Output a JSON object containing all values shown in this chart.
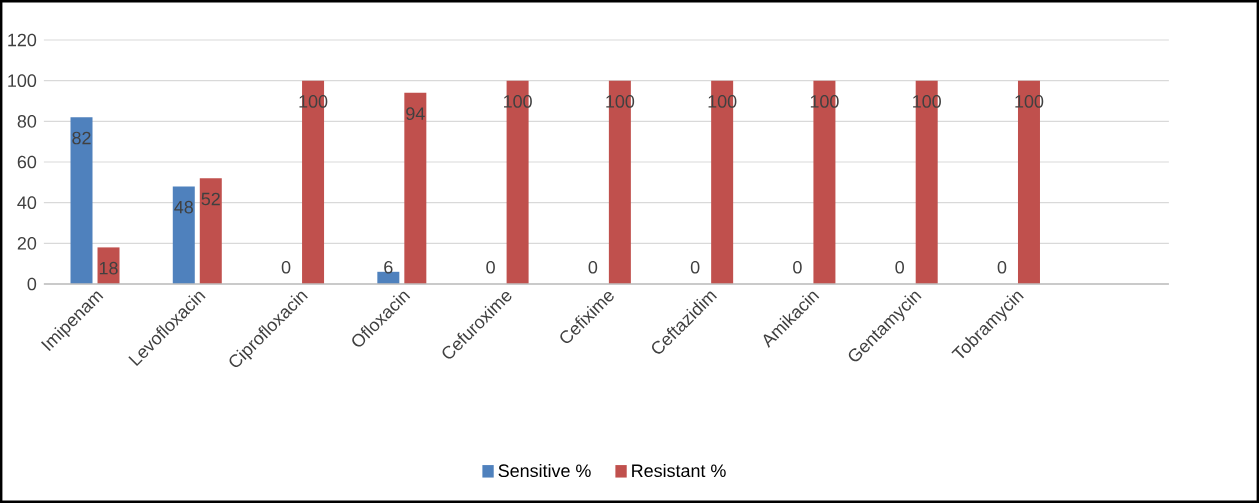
{
  "chart_data": {
    "type": "bar",
    "categories": [
      "Imipenam",
      "Levofloxacin",
      "Ciprofloxacin",
      "Ofloxacin",
      "Cefuroxime",
      "Cefixime",
      "Ceftazidim",
      "Amikacin",
      "Gentamycin",
      "Tobramycin"
    ],
    "series": [
      {
        "name": "Sensitive %",
        "color": "#4f81bd",
        "values": [
          82,
          48,
          0,
          6,
          0,
          0,
          0,
          0,
          0,
          0
        ]
      },
      {
        "name": "Resistant %",
        "color": "#c0504d",
        "values": [
          18,
          52,
          100,
          94,
          100,
          100,
          100,
          100,
          100,
          100
        ]
      }
    ],
    "ylim": [
      0,
      120
    ],
    "yticks": [
      0,
      20,
      40,
      60,
      80,
      100,
      120
    ],
    "grid": "y",
    "legend": "bottom",
    "data_labels": true
  }
}
